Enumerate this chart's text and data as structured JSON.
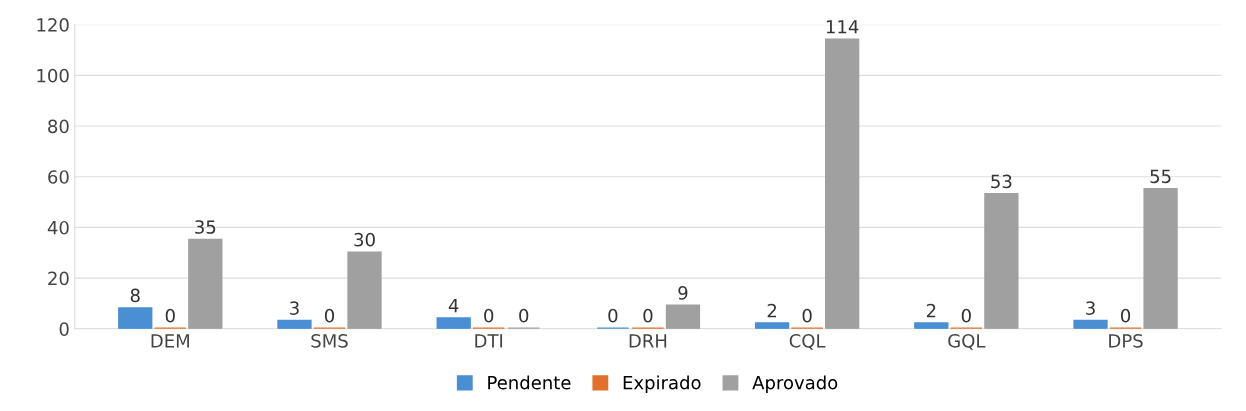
{
  "chart_data": {
    "type": "bar",
    "categories": [
      "DEM",
      "SMS",
      "DTI",
      "DRH",
      "CQL",
      "GQL",
      "DPS"
    ],
    "series": [
      {
        "name": "Pendente",
        "color": "#4a8fd4",
        "values": [
          8,
          3,
          4,
          0,
          2,
          2,
          3
        ]
      },
      {
        "name": "Expirado",
        "color": "#e0702a",
        "values": [
          0,
          0,
          0,
          0,
          0,
          0,
          0
        ]
      },
      {
        "name": "Aprovado",
        "color": "#a0a0a0",
        "values": [
          35,
          30,
          0,
          9,
          114,
          53,
          55
        ]
      }
    ],
    "ylim": [
      0,
      120
    ],
    "yticks": [
      0,
      20,
      40,
      60,
      80,
      100,
      120
    ],
    "grid": "y",
    "legend": "bottom",
    "data_labels": true
  }
}
